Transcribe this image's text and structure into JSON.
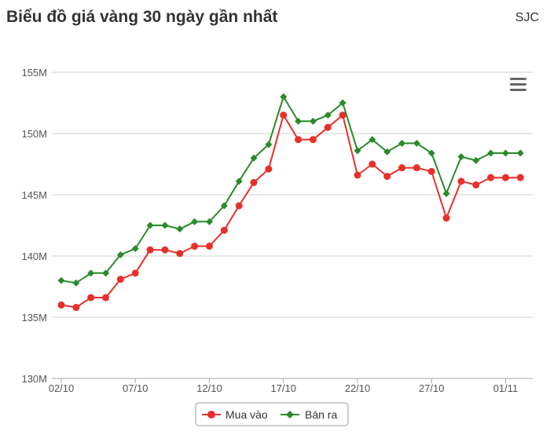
{
  "header": {
    "title": "Biểu đồ giá vàng 30 ngày gần nhất",
    "brand": "SJC"
  },
  "menu": {
    "icon": "hamburger-menu-icon"
  },
  "colors": {
    "buy": "#e8302a",
    "sell": "#2a8a2a",
    "grid": "#d0d0d0",
    "axis": "#aaaaaa"
  },
  "chart_data": {
    "type": "line",
    "title": "Biểu đồ giá vàng 30 ngày gần nhất",
    "ylim": [
      130,
      155
    ],
    "y_unit_suffix": "M",
    "y_ticks": [
      "130M",
      "135M",
      "140M",
      "145M",
      "150M",
      "155M"
    ],
    "x_tick_labels": [
      "02/10",
      "07/10",
      "12/10",
      "17/10",
      "22/10",
      "27/10",
      "01/11"
    ],
    "x_tick_indices": [
      0,
      5,
      10,
      15,
      20,
      25,
      30
    ],
    "grid": true,
    "legend_position": "bottom-center",
    "series": [
      {
        "name": "Mua vào",
        "marker": "circle",
        "values": [
          136.0,
          135.8,
          136.6,
          136.6,
          138.1,
          138.6,
          140.5,
          140.5,
          140.2,
          140.8,
          140.8,
          142.1,
          144.1,
          146.0,
          147.1,
          151.5,
          149.5,
          149.5,
          150.5,
          151.5,
          146.6,
          147.5,
          146.5,
          147.2,
          147.2,
          146.9,
          143.1,
          146.1,
          145.8,
          146.4,
          146.4,
          146.4
        ]
      },
      {
        "name": "Bán ra",
        "marker": "diamond",
        "values": [
          138.0,
          137.8,
          138.6,
          138.6,
          140.1,
          140.6,
          142.5,
          142.5,
          142.2,
          142.8,
          142.8,
          144.1,
          146.1,
          148.0,
          149.1,
          153.0,
          151.0,
          151.0,
          151.5,
          152.5,
          148.6,
          149.5,
          148.5,
          149.2,
          149.2,
          148.4,
          145.1,
          148.1,
          147.8,
          148.4,
          148.4,
          148.4
        ]
      }
    ]
  }
}
